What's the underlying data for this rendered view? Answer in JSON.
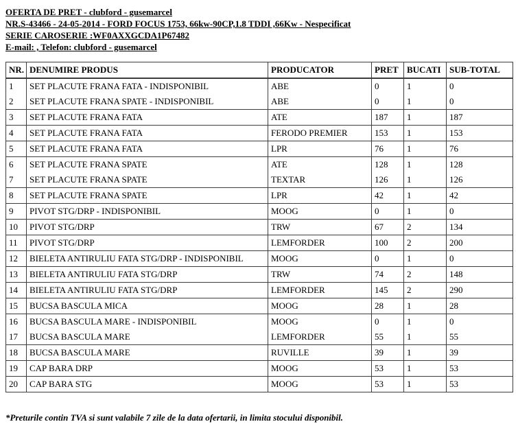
{
  "header": {
    "line1": "OFERTA DE PRET - clubford - gusemarcel",
    "line2": "NR.S-43466 - 24-05-2014 - FORD FOCUS 1753, 66kw-90CP,1.8 TDDI ,66Kw - Nespecificat",
    "line3": "SERIE CAROSERIE :WF0AXXGCDA1P67482",
    "line4": "E-mail: , Telefon: clubford - gusemarcel"
  },
  "table": {
    "columns": [
      "NR.",
      "DENUMIRE PRODUS",
      "PRODUCATOR",
      "PRET",
      "BUCATI",
      "SUB-TOTAL"
    ],
    "rows": [
      [
        "1",
        "SET PLACUTE FRANA FATA - INDISPONIBIL",
        "ABE",
        "0",
        "1",
        "0"
      ],
      [
        "2",
        "SET PLACUTE FRANA SPATE - INDISPONIBIL",
        "ABE",
        "0",
        "1",
        "0"
      ],
      [
        "3",
        "SET PLACUTE FRANA FATA",
        "ATE",
        "187",
        "1",
        "187"
      ],
      [
        "4",
        "SET PLACUTE FRANA FATA",
        "FERODO PREMIER",
        "153",
        "1",
        "153"
      ],
      [
        "5",
        "SET PLACUTE FRANA FATA",
        "LPR",
        "76",
        "1",
        "76"
      ],
      [
        "6",
        "SET PLACUTE FRANA SPATE",
        "ATE",
        "128",
        "1",
        "128"
      ],
      [
        "7",
        "SET PLACUTE FRANA SPATE",
        "TEXTAR",
        "126",
        "1",
        "126"
      ],
      [
        "8",
        "SET PLACUTE FRANA SPATE",
        "LPR",
        "42",
        "1",
        "42"
      ],
      [
        "9",
        "PIVOT STG/DRP - INDISPONIBIL",
        "MOOG",
        "0",
        "1",
        "0"
      ],
      [
        "10",
        "PIVOT STG/DRP",
        "TRW",
        "67",
        "2",
        "134"
      ],
      [
        "11",
        "PIVOT STG/DRP",
        "LEMFORDER",
        "100",
        "2",
        "200"
      ],
      [
        "12",
        "BIELETA ANTIRULIU FATA STG/DRP - INDISPONIBIL",
        "MOOG",
        "0",
        "1",
        "0"
      ],
      [
        "13",
        "BIELETA ANTIRULIU FATA STG/DRP",
        "TRW",
        "74",
        "2",
        "148"
      ],
      [
        "14",
        "BIELETA ANTIRULIU FATA STG/DRP",
        "LEMFORDER",
        "145",
        "2",
        "290"
      ],
      [
        "15",
        "BUCSA BASCULA MICA",
        "MOOG",
        "28",
        "1",
        "28"
      ],
      [
        "16",
        "BUCSA BASCULA MARE - INDISPONIBIL",
        "MOOG",
        "0",
        "1",
        "0"
      ],
      [
        "17",
        "BUCSA BASCULA MARE",
        "LEMFORDER",
        "55",
        "1",
        "55"
      ],
      [
        "18",
        "BUCSA BASCULA MARE",
        "RUVILLE",
        "39",
        "1",
        "39"
      ],
      [
        "19",
        "CAP BARA DRP",
        "MOOG",
        "53",
        "1",
        "53"
      ],
      [
        "20",
        "CAP BARA STG",
        "MOOG",
        "53",
        "1",
        "53"
      ]
    ],
    "rows_without_divider_below": [
      "1",
      "6",
      "16"
    ]
  },
  "footer": {
    "note": "*Preturile contin TVA si sunt valabile 7 zile de la data ofertarii, in limita stocului disponibil."
  }
}
